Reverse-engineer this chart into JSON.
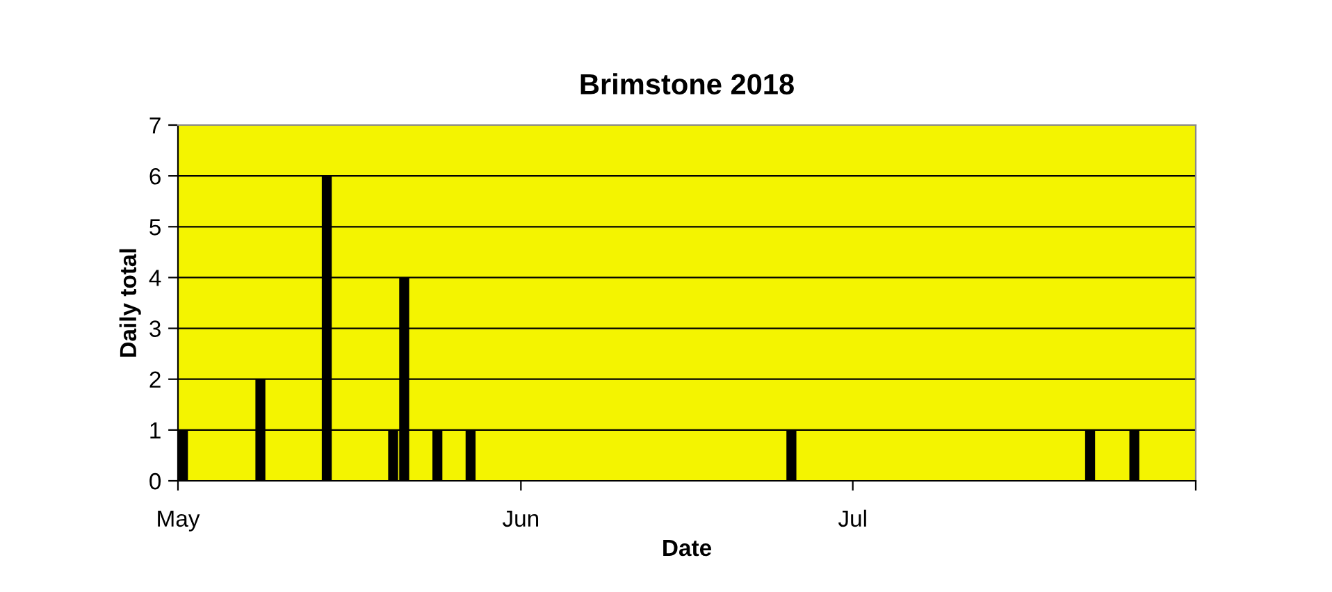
{
  "chart_data": {
    "type": "bar",
    "title": "Brimstone 2018",
    "xlabel": "Date",
    "ylabel": "Daily total",
    "x": [
      "2018-05-01",
      "2018-05-08",
      "2018-05-14",
      "2018-05-20",
      "2018-05-21",
      "2018-05-24",
      "2018-05-27",
      "2018-06-25",
      "2018-07-22",
      "2018-07-26"
    ],
    "series": [
      {
        "color": "#000000",
        "values": [
          1,
          2,
          6,
          1,
          4,
          1,
          1,
          1,
          1,
          1
        ]
      }
    ],
    "xlim": [
      "2018-05-01",
      "2018-08-01"
    ],
    "xticks": [
      {
        "value": "2018-05-01",
        "label": "May"
      },
      {
        "value": "2018-06-01",
        "label": "Jun"
      },
      {
        "value": "2018-07-01",
        "label": "Jul"
      },
      {
        "value": "2018-08-01",
        "label": null
      }
    ],
    "ylim": [
      0,
      7
    ],
    "yticks": [
      0,
      1,
      2,
      3,
      4,
      5,
      6,
      7
    ],
    "grid": "y"
  }
}
